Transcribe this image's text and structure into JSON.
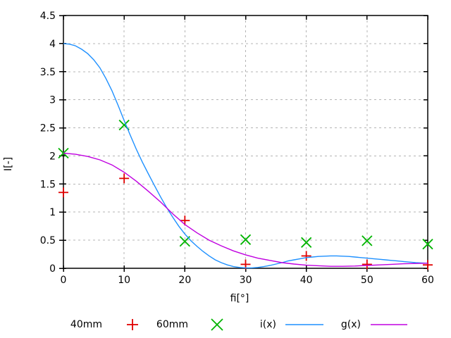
{
  "chart_data": {
    "type": "line",
    "title": "",
    "xlabel": "fi[°]",
    "ylabel": "I[-]",
    "xlim": [
      0,
      60
    ],
    "ylim": [
      0,
      4.5
    ],
    "xticks": [
      0,
      10,
      20,
      30,
      40,
      50,
      60
    ],
    "yticks": [
      0,
      0.5,
      1,
      1.5,
      2,
      2.5,
      3,
      3.5,
      4,
      4.5
    ],
    "x_tick_labels": [
      "0",
      "10",
      "20",
      "30",
      "40",
      "50",
      "60"
    ],
    "y_tick_labels": [
      "0",
      "0.5",
      "1",
      "1.5",
      "2",
      "2.5",
      "3",
      "3.5",
      "4",
      "4.5"
    ],
    "grid": true,
    "grid_style": "dashed",
    "legend_position": "bottom-center",
    "colors": {
      "grid": "#b4b4b4",
      "border": "#000000",
      "background": "#ffffff"
    },
    "series": [
      {
        "name": "40mm",
        "kind": "points",
        "marker": "plus",
        "color": "#e00000",
        "x": [
          0,
          10,
          20,
          30,
          40,
          50,
          60
        ],
        "y": [
          1.35,
          1.6,
          0.85,
          0.07,
          0.22,
          0.07,
          0.06
        ]
      },
      {
        "name": "60mm",
        "kind": "points",
        "marker": "cross",
        "color": "#00b400",
        "x": [
          0,
          10,
          20,
          30,
          40,
          50,
          60
        ],
        "y": [
          2.05,
          2.55,
          0.48,
          0.51,
          0.46,
          0.49,
          0.43
        ]
      },
      {
        "name": "i(x)",
        "kind": "line",
        "color": "#1e90ff",
        "x": [
          0,
          1,
          2,
          3,
          4,
          5,
          6,
          7,
          8,
          9,
          10,
          11,
          12,
          13,
          14,
          15,
          16,
          17,
          18,
          19,
          20,
          21,
          22,
          23,
          24,
          25,
          26,
          27,
          28,
          29,
          30,
          31,
          32,
          33,
          34,
          35,
          36,
          37,
          38,
          39,
          40,
          41,
          42,
          43,
          44,
          45,
          46,
          47,
          48,
          49,
          50,
          51,
          52,
          53,
          54,
          55,
          56,
          57,
          58,
          59,
          60
        ],
        "y": [
          4.0,
          3.99,
          3.96,
          3.9,
          3.82,
          3.71,
          3.57,
          3.38,
          3.16,
          2.9,
          2.63,
          2.37,
          2.12,
          1.89,
          1.68,
          1.47,
          1.27,
          1.08,
          0.91,
          0.75,
          0.61,
          0.49,
          0.39,
          0.3,
          0.22,
          0.15,
          0.1,
          0.06,
          0.03,
          0.015,
          0.008,
          0.008,
          0.015,
          0.03,
          0.05,
          0.075,
          0.1,
          0.13,
          0.15,
          0.17,
          0.19,
          0.2,
          0.21,
          0.215,
          0.22,
          0.22,
          0.215,
          0.21,
          0.2,
          0.19,
          0.18,
          0.17,
          0.16,
          0.15,
          0.14,
          0.13,
          0.12,
          0.11,
          0.1,
          0.095,
          0.09
        ]
      },
      {
        "name": "g(x)",
        "kind": "line",
        "color": "#c000e0",
        "x": [
          0,
          2,
          4,
          6,
          8,
          10,
          12,
          14,
          16,
          18,
          20,
          22,
          24,
          26,
          28,
          30,
          32,
          34,
          36,
          38,
          40,
          42,
          44,
          46,
          48,
          50,
          52,
          54,
          56,
          58,
          60
        ],
        "y": [
          2.05,
          2.03,
          1.99,
          1.93,
          1.84,
          1.71,
          1.55,
          1.37,
          1.18,
          0.97,
          0.78,
          0.63,
          0.5,
          0.4,
          0.31,
          0.24,
          0.18,
          0.14,
          0.1,
          0.075,
          0.055,
          0.045,
          0.035,
          0.035,
          0.04,
          0.05,
          0.06,
          0.07,
          0.08,
          0.085,
          0.09
        ]
      }
    ]
  }
}
